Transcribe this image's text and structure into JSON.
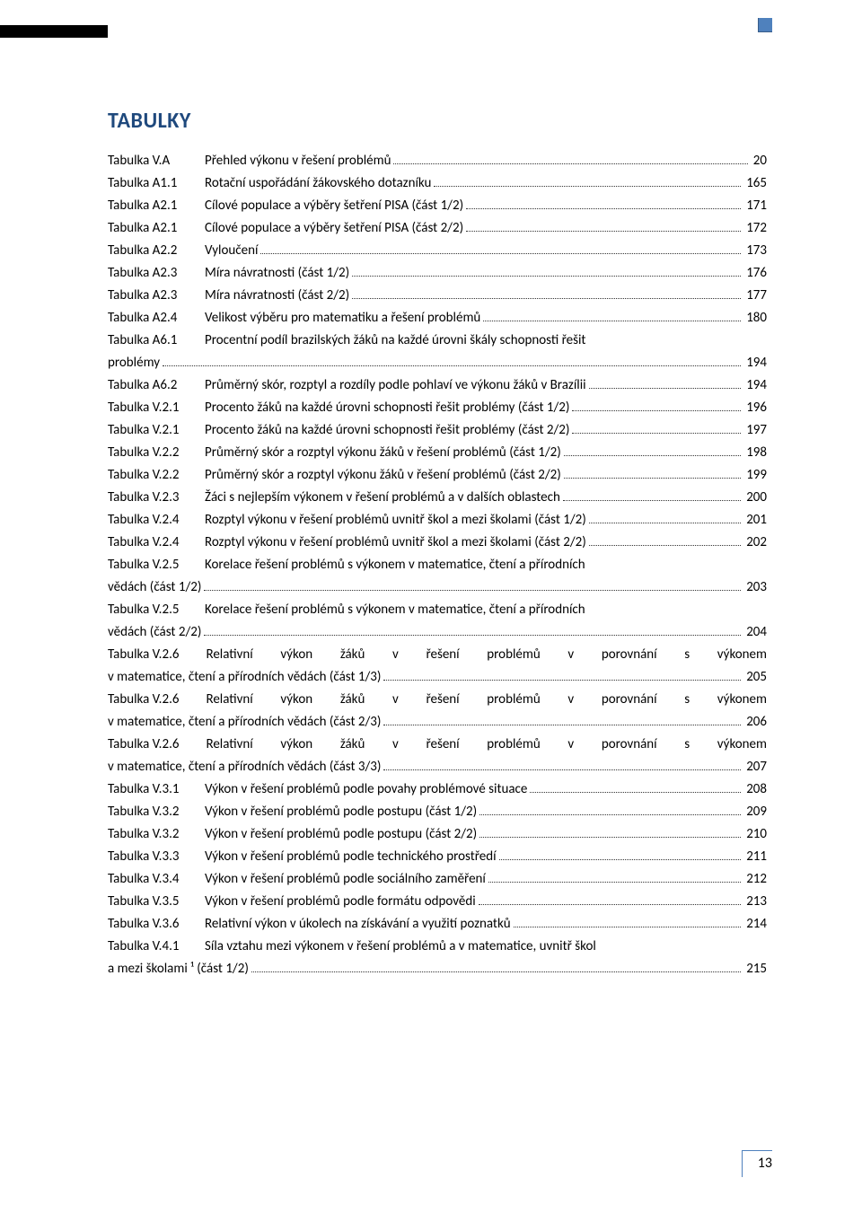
{
  "colors": {
    "heading": "#1f497d",
    "accent": "#4f81bd",
    "text": "#000000",
    "background": "#ffffff"
  },
  "typography": {
    "heading_fontsize": 24,
    "body_fontsize": 15,
    "heading_weight": 700,
    "body_weight": 400
  },
  "section_title": "TABULKY",
  "page_number": "13",
  "entries": [
    {
      "label": "Tabulka V.A",
      "title": "Přehled výkonu v řešení problémů",
      "page": "20"
    },
    {
      "label": "Tabulka A1.1",
      "title": "Rotační uspořádání žákovského dotazníku",
      "page": "165"
    },
    {
      "label": "Tabulka A2.1",
      "title": "Cílové populace a výběry šetření PISA (část 1/2)",
      "page": "171"
    },
    {
      "label": "Tabulka A2.1",
      "title": "Cílové populace a výběry šetření PISA (část 2/2)",
      "page": "172"
    },
    {
      "label": "Tabulka A2.2",
      "title": "Vyloučení",
      "page": "173"
    },
    {
      "label": "Tabulka A2.3",
      "title": "Míra návratnosti (část 1/2)",
      "page": "176"
    },
    {
      "label": "Tabulka A2.3",
      "title": "Míra návratnosti (část 2/2)",
      "page": "177"
    },
    {
      "label": "Tabulka A2.4",
      "title": "Velikost výběru pro matematiku a řešení problémů",
      "page": "180"
    },
    {
      "label": "Tabulka A6.1",
      "title": "Procentní podíl brazilských žáků na každé úrovni škály schopnosti řešit",
      "page": "",
      "wrap_next": "problémy",
      "wrap_page": "194"
    },
    {
      "label": "Tabulka A6.2",
      "title": "Průměrný skór, rozptyl a rozdíly podle pohlaví ve výkonu žáků v Brazílii",
      "page": "194"
    },
    {
      "label": "Tabulka V.2.1",
      "title": "Procento žáků na každé úrovni schopnosti řešit problémy (část 1/2)",
      "page": "196"
    },
    {
      "label": "Tabulka V.2.1",
      "title": "Procento žáků na každé úrovni schopnosti řešit problémy (část 2/2)",
      "page": "197"
    },
    {
      "label": "Tabulka V.2.2",
      "title": "Průměrný skór a rozptyl výkonu žáků v řešení problémů (část 1/2)",
      "page": "198"
    },
    {
      "label": "Tabulka V.2.2",
      "title": "Průměrný skór a rozptyl výkonu žáků v řešení problémů (část 2/2)",
      "page": "199"
    },
    {
      "label": "Tabulka V.2.3",
      "title": "Žáci s nejlepším výkonem v řešení problémů a v dalších oblastech",
      "page": "200"
    },
    {
      "label": "Tabulka V.2.4",
      "title": "Rozptyl výkonu v řešení problémů uvnitř škol a mezi školami (část 1/2)",
      "page": "201"
    },
    {
      "label": "Tabulka V.2.4",
      "title": "Rozptyl výkonu v řešení problémů uvnitř škol a mezi školami (část 2/2)",
      "page": "202"
    },
    {
      "label": "Tabulka V.2.5",
      "title": "Korelace řešení problémů s výkonem v matematice, čtení a přírodních",
      "page": "",
      "wrap_next": "vědách (část 1/2)",
      "wrap_page": "203"
    },
    {
      "label": "Tabulka V.2.5",
      "title": "Korelace řešení problémů s výkonem v matematice, čtení a přírodních",
      "page": "",
      "wrap_next": "vědách (část 2/2)",
      "wrap_page": "204"
    },
    {
      "label": "Tabulka V.2.6",
      "title": "Relativní výkon žáků v řešení problémů v porovnání s výkonem",
      "page": "",
      "wrap_next": "v matematice, čtení a přírodních vědách (část 1/3)",
      "wrap_page": "205",
      "justify": true
    },
    {
      "label": "Tabulka V.2.6",
      "title": "Relativní výkon žáků v řešení problémů v porovnání s výkonem",
      "page": "",
      "wrap_next": "v matematice, čtení a přírodních vědách (část 2/3)",
      "wrap_page": "206",
      "justify": true
    },
    {
      "label": "Tabulka V.2.6",
      "title": "Relativní výkon žáků v řešení problémů v porovnání s výkonem",
      "page": "",
      "wrap_next": "v matematice, čtení a přírodních vědách (část 3/3)",
      "wrap_page": "207",
      "justify": true
    },
    {
      "label": "Tabulka V.3.1",
      "title": "Výkon v řešení problémů podle povahy problémové situace",
      "page": "208"
    },
    {
      "label": "Tabulka V.3.2",
      "title": "Výkon v řešení problémů podle postupu (část 1/2)",
      "page": "209"
    },
    {
      "label": "Tabulka V.3.2",
      "title": "Výkon v řešení problémů podle postupu (část 2/2)",
      "page": "210"
    },
    {
      "label": "Tabulka V.3.3",
      "title": "Výkon v řešení problémů podle technického prostředí",
      "page": "211"
    },
    {
      "label": "Tabulka V.3.4",
      "title": "Výkon v řešení problémů podle sociálního zaměření",
      "page": "212"
    },
    {
      "label": "Tabulka V.3.5",
      "title": "Výkon v řešení problémů podle formátu odpovědi",
      "page": "213"
    },
    {
      "label": "Tabulka V.3.6",
      "title": "Relativní výkon v úkolech na získávání a využití poznatků",
      "page": "214"
    },
    {
      "label": "Tabulka V.4.1",
      "title": "Síla vztahu mezi výkonem v řešení problémů a v matematice, uvnitř škol",
      "page": "",
      "wrap_next": "a mezi školami ¹ (část 1/2)",
      "wrap_page": "215"
    }
  ]
}
